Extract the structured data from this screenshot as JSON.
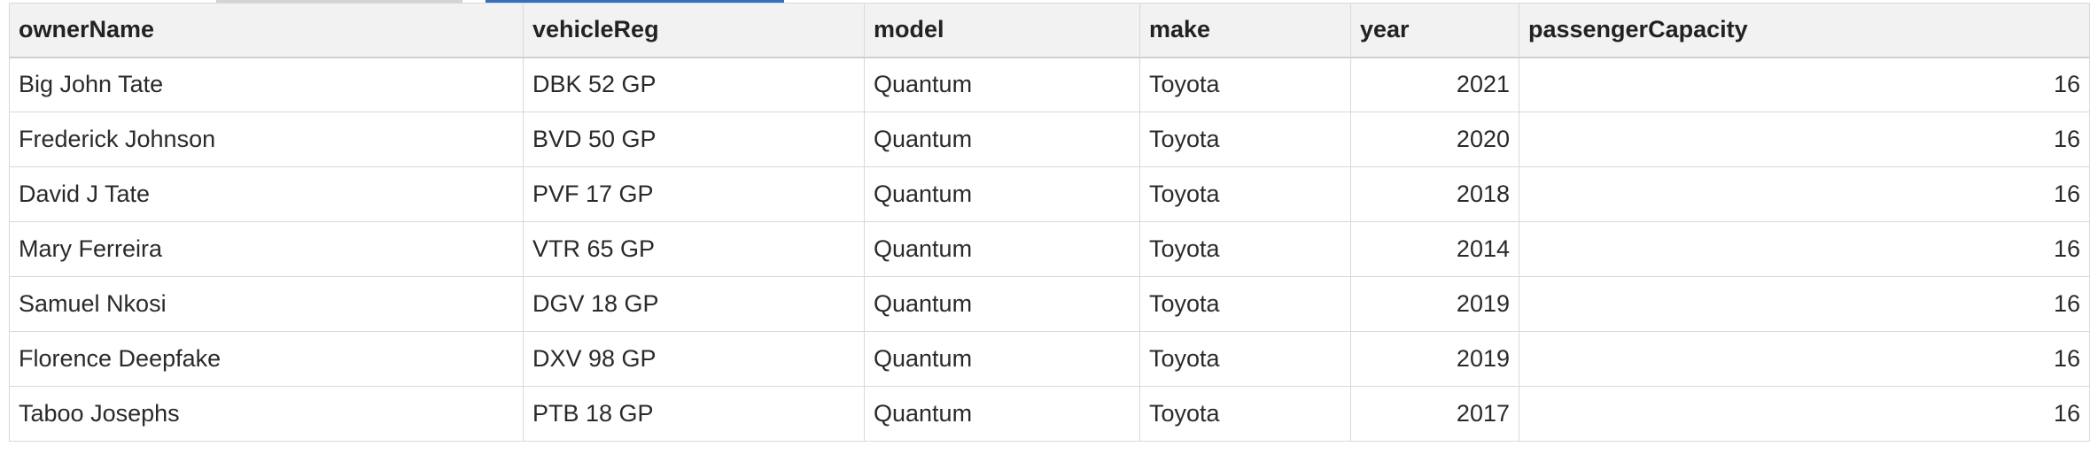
{
  "table": {
    "columns": [
      {
        "key": "ownerName",
        "label": "ownerName",
        "align": "left"
      },
      {
        "key": "vehicleReg",
        "label": "vehicleReg",
        "align": "left"
      },
      {
        "key": "model",
        "label": "model",
        "align": "left"
      },
      {
        "key": "make",
        "label": "make",
        "align": "left"
      },
      {
        "key": "year",
        "label": "year",
        "align": "right"
      },
      {
        "key": "passengerCapacity",
        "label": "passengerCapacity",
        "align": "right"
      }
    ],
    "rows": [
      {
        "ownerName": "Big John Tate",
        "vehicleReg": "DBK 52 GP",
        "model": "Quantum",
        "make": "Toyota",
        "year": "2021",
        "passengerCapacity": "16"
      },
      {
        "ownerName": "Frederick Johnson",
        "vehicleReg": "BVD 50 GP",
        "model": "Quantum",
        "make": "Toyota",
        "year": "2020",
        "passengerCapacity": "16"
      },
      {
        "ownerName": "David J Tate",
        "vehicleReg": "PVF 17 GP",
        "model": "Quantum",
        "make": "Toyota",
        "year": "2018",
        "passengerCapacity": "16"
      },
      {
        "ownerName": "Mary Ferreira",
        "vehicleReg": "VTR 65 GP",
        "model": "Quantum",
        "make": "Toyota",
        "year": "2014",
        "passengerCapacity": "16"
      },
      {
        "ownerName": "Samuel Nkosi",
        "vehicleReg": "DGV 18 GP",
        "model": "Quantum",
        "make": "Toyota",
        "year": "2019",
        "passengerCapacity": "16"
      },
      {
        "ownerName": "Florence Deepfake",
        "vehicleReg": "DXV 98 GP",
        "model": "Quantum",
        "make": "Toyota",
        "year": "2019",
        "passengerCapacity": "16"
      },
      {
        "ownerName": "Taboo Josephs",
        "vehicleReg": "PTB 18 GP",
        "model": "Quantum",
        "make": "Toyota",
        "year": "2017",
        "passengerCapacity": "16"
      }
    ]
  },
  "colors": {
    "header_bg": "#f2f2f2",
    "grid_line": "#d9d9d9",
    "active_tab_indicator": "#3a6fb0",
    "inactive_tab_indicator": "#d4d4d4"
  }
}
